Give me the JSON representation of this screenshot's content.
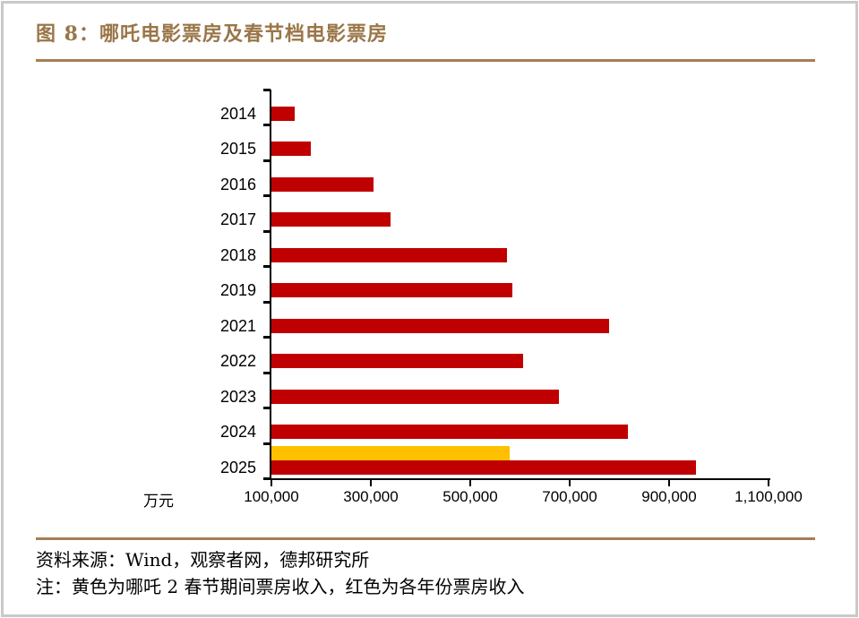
{
  "header": {
    "title": "图 8：哪吒电影票房及春节档电影票房"
  },
  "chart_data": {
    "type": "bar",
    "orientation": "horizontal",
    "title": "哪吒电影票房及春节档电影票房",
    "categories": [
      "2014",
      "2015",
      "2016",
      "2017",
      "2018",
      "2019",
      "2021",
      "2022",
      "2023",
      "2024",
      "2025"
    ],
    "series": [
      {
        "name": "哪吒2春节期间票房收入",
        "color": "#FFC000",
        "values": [
          null,
          null,
          null,
          null,
          null,
          null,
          null,
          null,
          null,
          null,
          579000
        ]
      },
      {
        "name": "各年份票房收入",
        "color": "#C00000",
        "values": [
          147000,
          180000,
          305000,
          339000,
          573000,
          585000,
          780000,
          607000,
          679000,
          818000,
          954000
        ]
      }
    ],
    "x_axis": {
      "unit_label": "万元",
      "min": 100000,
      "max": 1100000,
      "ticks": [
        100000,
        300000,
        500000,
        700000,
        900000,
        1100000
      ],
      "tick_labels": [
        "100,000",
        "300,000",
        "500,000",
        "700,000",
        "900,000",
        "1,100,000"
      ]
    },
    "grid": false,
    "legend_position": "none"
  },
  "footer": {
    "source": "资料来源：Wind，观察者网，德邦研究所",
    "note": "注：黄色为哪吒 2 春节期间票房收入，红色为各年份票房收入"
  },
  "colors": {
    "bar_red": "#C00000",
    "bar_yellow": "#FFC000",
    "title_brown": "#9A7648",
    "rule_brown": "#A67D55",
    "border_gray": "#C9C9C9"
  }
}
